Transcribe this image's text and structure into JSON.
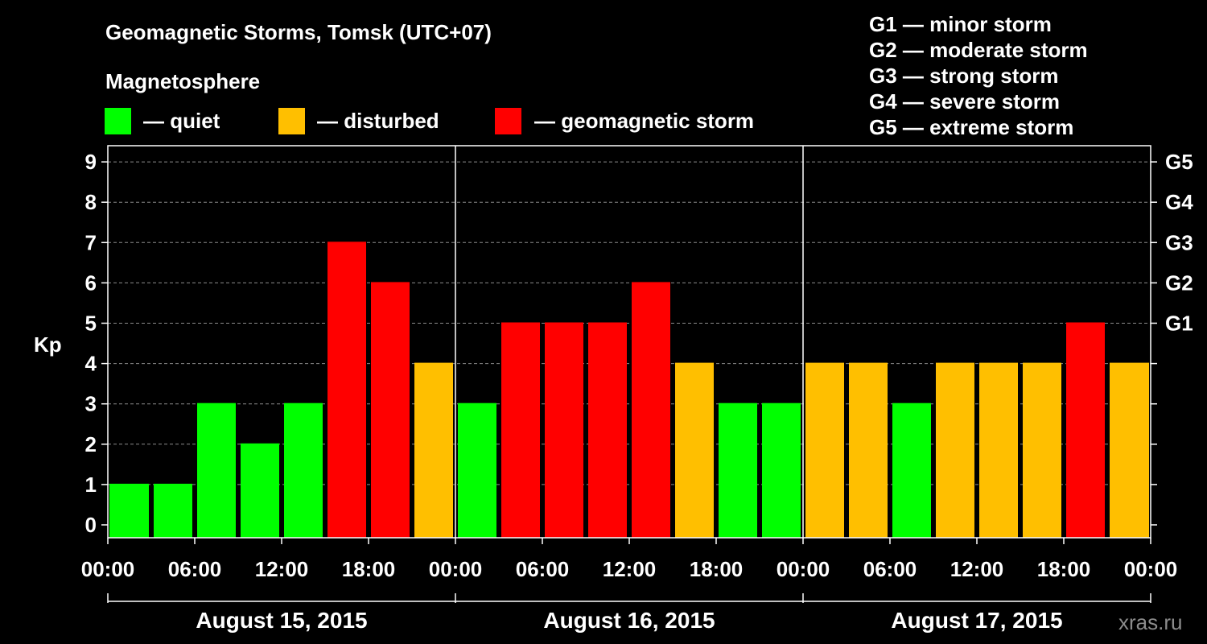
{
  "header": {
    "title": "Geomagnetic Storms, Tomsk (UTC+07)",
    "subtitle": "Magnetosphere"
  },
  "legend": [
    {
      "label": "— quiet",
      "color": "#00ff00"
    },
    {
      "label": "— disturbed",
      "color": "#ffbf00"
    },
    {
      "label": "— geomagnetic storm",
      "color": "#ff0000"
    }
  ],
  "scale_legend": [
    "G1 — minor storm",
    "G2 — moderate storm",
    "G3 — strong storm",
    "G4 — severe storm",
    "G5 — extreme storm"
  ],
  "watermark": "xras.ru",
  "chart_data": {
    "type": "bar",
    "title": "Geomagnetic Storms, Tomsk (UTC+07)",
    "ylabel": "Kp",
    "ylim": [
      0,
      9
    ],
    "y_ticks": [
      "0",
      "1",
      "2",
      "3",
      "4",
      "5",
      "6",
      "7",
      "8",
      "9"
    ],
    "grid": true,
    "right_axis": [
      {
        "kp": 5,
        "label": "G1"
      },
      {
        "kp": 6,
        "label": "G2"
      },
      {
        "kp": 7,
        "label": "G3"
      },
      {
        "kp": 8,
        "label": "G4"
      },
      {
        "kp": 9,
        "label": "G5"
      }
    ],
    "x_tick_labels": [
      "00:00",
      "06:00",
      "12:00",
      "18:00",
      "00:00",
      "06:00",
      "12:00",
      "18:00",
      "00:00",
      "06:00",
      "12:00",
      "18:00",
      "00:00"
    ],
    "days": [
      "August 15, 2015",
      "August 16, 2015",
      "August 17, 2015"
    ],
    "categories": [
      "Aug 15 00:00",
      "Aug 15 03:00",
      "Aug 15 06:00",
      "Aug 15 09:00",
      "Aug 15 12:00",
      "Aug 15 15:00",
      "Aug 15 18:00",
      "Aug 15 21:00",
      "Aug 16 00:00",
      "Aug 16 03:00",
      "Aug 16 06:00",
      "Aug 16 09:00",
      "Aug 16 12:00",
      "Aug 16 15:00",
      "Aug 16 18:00",
      "Aug 16 21:00",
      "Aug 17 00:00",
      "Aug 17 03:00",
      "Aug 17 06:00",
      "Aug 17 09:00",
      "Aug 17 12:00",
      "Aug 17 15:00",
      "Aug 17 18:00",
      "Aug 17 21:00"
    ],
    "values": [
      1,
      1,
      3,
      2,
      3,
      7,
      6,
      4,
      3,
      5,
      5,
      5,
      6,
      4,
      3,
      3,
      4,
      4,
      3,
      4,
      4,
      4,
      5,
      4
    ],
    "partial_first": 1,
    "partial_last": 4
  }
}
